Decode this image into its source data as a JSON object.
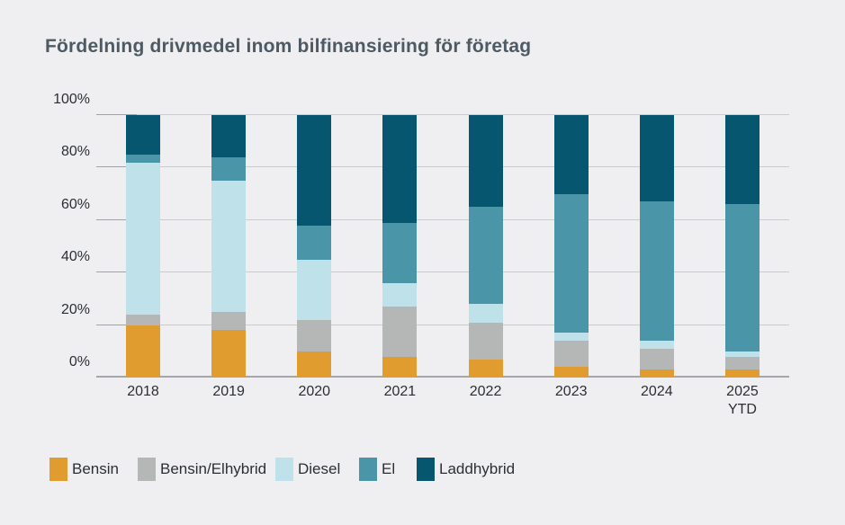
{
  "header": {
    "title": "Fördelning drivmedel inom bilfinansiering för företag"
  },
  "chart_data": {
    "type": "bar",
    "stacked": true,
    "title": "Fördelning drivmedel inom bilfinansiering för företag",
    "categories": [
      "2018",
      "2019",
      "2020",
      "2021",
      "2022",
      "2023",
      "2024",
      "2025 YTD"
    ],
    "series": [
      {
        "name": "Bensin",
        "color": "#e09c2f",
        "values": [
          20,
          18,
          10,
          8,
          7,
          4,
          3,
          3
        ]
      },
      {
        "name": "Bensin/Elhybrid",
        "color": "#b5b6b6",
        "values": [
          4,
          7,
          12,
          19,
          14,
          10,
          8,
          5
        ]
      },
      {
        "name": "Diesel",
        "color": "#bfe1e9",
        "values": [
          58,
          50,
          23,
          9,
          7,
          3,
          3,
          2
        ]
      },
      {
        "name": "El",
        "color": "#4a95a7",
        "values": [
          3,
          9,
          13,
          23,
          37,
          53,
          53,
          56
        ]
      },
      {
        "name": "Laddhybrid",
        "color": "#07566f",
        "values": [
          15,
          16,
          42,
          41,
          35,
          30,
          33,
          34
        ]
      }
    ],
    "unit": "%",
    "xlabel": "",
    "ylabel": "",
    "ylim": [
      0,
      100
    ],
    "y_ticks": [
      "0%",
      "20%",
      "40%",
      "60%",
      "80%",
      "100%"
    ],
    "grid": true,
    "legend_position": "bottom"
  },
  "colors": {
    "background": "#efeff1",
    "title_text": "#4d5a64",
    "axis_text": "#2b2f33",
    "grid_line": "#cacbce",
    "baseline": "#a5a6a9"
  }
}
